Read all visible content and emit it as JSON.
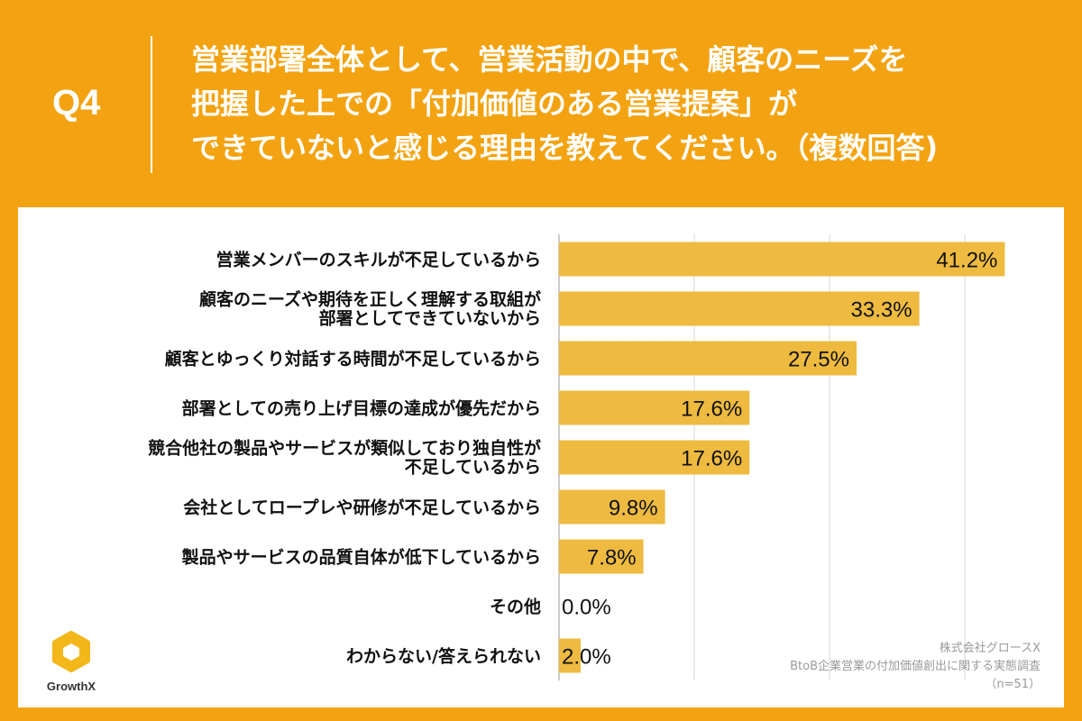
{
  "header": {
    "q_label": "Q4",
    "question_lines": [
      "営業部署全体として、営業活動の中で、顧客のニーズを",
      "把握した上での「付加価値のある営業提案」が",
      "できていないと感じる理由を教えてください。（複数回答)"
    ]
  },
  "footer": {
    "company": "株式会社グロースX",
    "survey": "BtoB企業営業の付加価値創出に関する実態調査",
    "sample": "（n=51）"
  },
  "logo": {
    "text": "GrowthX",
    "icon": "growthx-logo-icon"
  },
  "colors": {
    "background": "#F3A311",
    "bar": "#EEBB40",
    "panel": "#FFFFFF",
    "text": "#111111"
  },
  "chart_data": {
    "type": "bar",
    "orientation": "horizontal",
    "categories": [
      [
        "営業メンバーのスキルが不足しているから"
      ],
      [
        "顧客のニーズや期待を正しく理解する取組が",
        "部署としてできていないから"
      ],
      [
        "顧客とゆっくり対話する時間が不足しているから"
      ],
      [
        "部署としての売り上げ目標の達成が優先だから"
      ],
      [
        "競合他社の製品やサービスが類似しており独自性が",
        "不足しているから"
      ],
      [
        "会社としてロープレや研修が不足しているから"
      ],
      [
        "製品やサービスの品質自体が低下しているから"
      ],
      [
        "その他"
      ],
      [
        "わからない/答えられない"
      ]
    ],
    "values": [
      41.2,
      33.3,
      27.5,
      17.6,
      17.6,
      9.8,
      7.8,
      0.0,
      2.0
    ],
    "value_labels": [
      "41.2%",
      "33.3%",
      "27.5%",
      "17.6%",
      "17.6%",
      "9.8%",
      "7.8%",
      "0.0%",
      "2.0%"
    ],
    "xlim": [
      0,
      50
    ],
    "grid": true,
    "gridline_values": [
      12.5,
      25,
      37.5,
      50
    ]
  }
}
